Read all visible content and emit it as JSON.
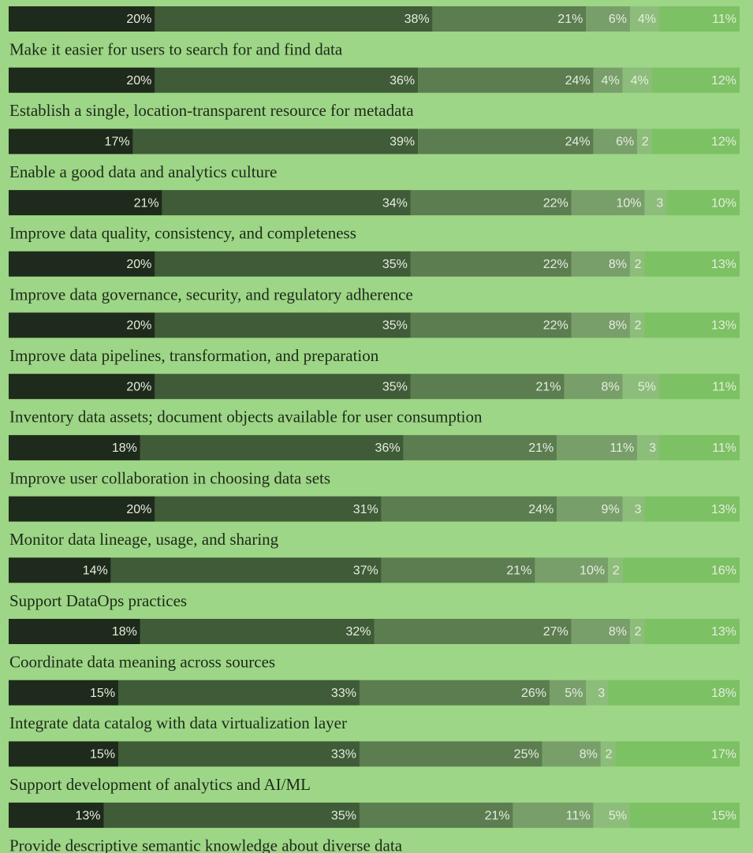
{
  "chart_data": {
    "type": "stacked-bar",
    "orientation": "horizontal",
    "categories": [
      null,
      "Make it easier for users to search for and find data",
      "Establish a single, location-transparent resource for metadata",
      "Enable a good data and analytics culture",
      "Improve data quality, consistency, and completeness",
      "Improve data governance, security, and regulatory adherence",
      "Improve data pipelines, transformation, and preparation",
      "Inventory data assets; document objects available for user consumption",
      "Improve user collaboration in choosing data sets",
      "Monitor data lineage, usage, and sharing",
      "Support DataOps practices",
      "Coordinate data meaning across sources",
      "Integrate data catalog with data virtualization layer",
      "Support development of analytics and AI/ML",
      "Provide descriptive semantic knowledge about diverse data"
    ],
    "xlim": [
      0,
      100
    ],
    "series": [
      {
        "color": "#1e2a1b",
        "values": [
          20,
          20,
          17,
          21,
          20,
          20,
          20,
          18,
          20,
          14,
          18,
          15,
          15,
          13,
          null
        ],
        "value_labels": [
          "20%",
          "20%",
          "17%",
          "21%",
          "20%",
          "20%",
          "20%",
          "18%",
          "20%",
          "14%",
          "18%",
          "15%",
          "15%",
          "13%",
          null
        ]
      },
      {
        "color": "#3f5b37",
        "values": [
          38,
          36,
          39,
          34,
          35,
          35,
          35,
          36,
          31,
          37,
          32,
          33,
          33,
          35,
          null
        ],
        "value_labels": [
          "38%",
          "36%",
          "39%",
          "34%",
          "35%",
          "35%",
          "35%",
          "36%",
          "31%",
          "37%",
          "32%",
          "33%",
          "33%",
          "35%",
          null
        ]
      },
      {
        "color": "#5b7d50",
        "values": [
          21,
          24,
          24,
          22,
          22,
          22,
          21,
          21,
          24,
          21,
          27,
          26,
          25,
          21,
          null
        ],
        "value_labels": [
          "21%",
          "24%",
          "24%",
          "22%",
          "22%",
          "22%",
          "21%",
          "21%",
          "24%",
          "21%",
          "27%",
          "26%",
          "25%",
          "21%",
          null
        ]
      },
      {
        "color": "#789f6a",
        "values": [
          6,
          4,
          6,
          10,
          8,
          8,
          8,
          11,
          9,
          10,
          8,
          5,
          8,
          11,
          null
        ],
        "value_labels": [
          "6%",
          "4%",
          "6%",
          "10%",
          "8%",
          "8%",
          "8%",
          "11%",
          "9%",
          "10%",
          "8%",
          "5%",
          "8%",
          "11%",
          null
        ]
      },
      {
        "color": "#8dbd7a",
        "values": [
          4,
          4,
          2,
          3,
          2,
          2,
          5,
          3,
          3,
          2,
          2,
          3,
          2,
          5,
          null
        ],
        "value_labels": [
          "4%",
          "4%",
          "2",
          "3",
          "2",
          "2",
          "5%",
          "3",
          "3",
          "2",
          "2",
          "3",
          "2",
          "5%",
          null
        ]
      },
      {
        "color": "#7cc163",
        "values": [
          11,
          12,
          12,
          10,
          13,
          13,
          11,
          11,
          13,
          16,
          13,
          18,
          17,
          15,
          null
        ],
        "value_labels": [
          "11%",
          "12%",
          "12%",
          "10%",
          "13%",
          "13%",
          "11%",
          "11%",
          "13%",
          "16%",
          "13%",
          "18%",
          "17%",
          "15%",
          null
        ]
      }
    ]
  }
}
